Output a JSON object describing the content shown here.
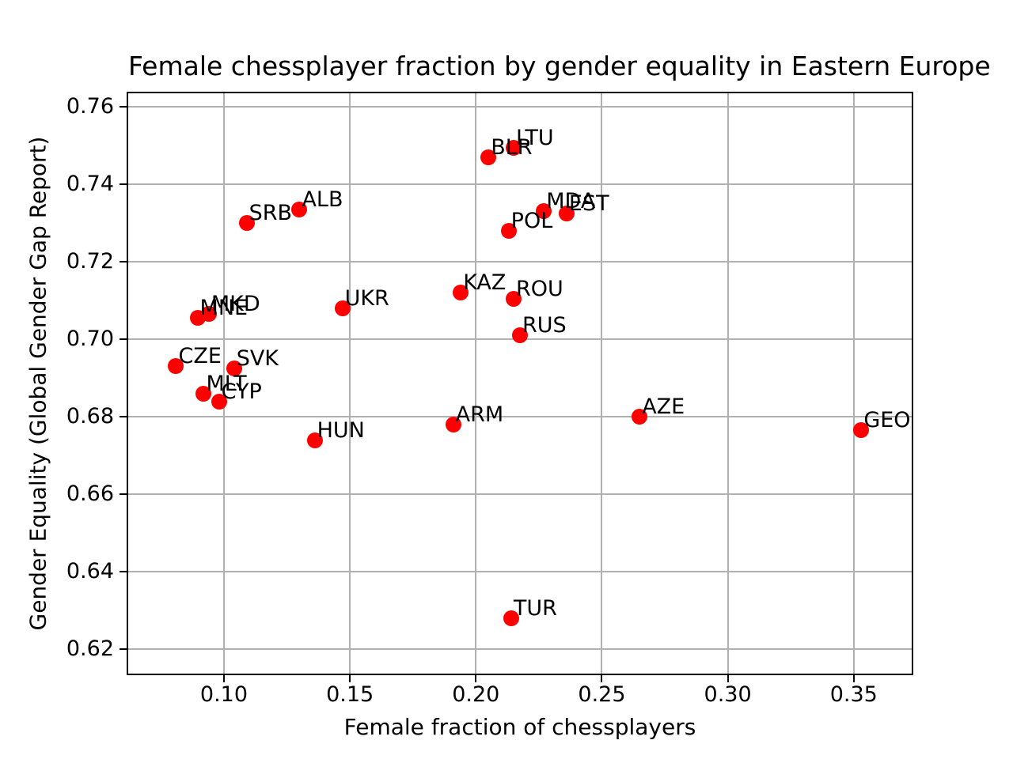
{
  "chart_data": {
    "type": "scatter",
    "title": "Female chessplayer fraction by gender equality in Eastern Europe",
    "xlabel": "Female fraction of chessplayers",
    "ylabel": "Gender Equality (Global Gender Gap Report)",
    "xlim": [
      0.062,
      0.373
    ],
    "ylim": [
      0.6137,
      0.7635
    ],
    "xticks": [
      0.1,
      0.15,
      0.2,
      0.25,
      0.3,
      0.35
    ],
    "xtick_labels": [
      "0.10",
      "0.15",
      "0.20",
      "0.25",
      "0.30",
      "0.35"
    ],
    "yticks": [
      0.62,
      0.64,
      0.66,
      0.68,
      0.7,
      0.72,
      0.74,
      0.76
    ],
    "ytick_labels": [
      "0.62",
      "0.64",
      "0.66",
      "0.68",
      "0.70",
      "0.72",
      "0.74",
      "0.76"
    ],
    "grid": true,
    "legend": false,
    "marker_color": "#ff0000",
    "grid_color": "#b0b0b0",
    "text_color": "#000000",
    "points": [
      {
        "label": "LTU",
        "x": 0.215,
        "y": 0.7495
      },
      {
        "label": "BLR",
        "x": 0.205,
        "y": 0.747
      },
      {
        "label": "EST",
        "x": 0.236,
        "y": 0.7325
      },
      {
        "label": "MDA",
        "x": 0.227,
        "y": 0.733
      },
      {
        "label": "ALB",
        "x": 0.13,
        "y": 0.7335
      },
      {
        "label": "SRB",
        "x": 0.109,
        "y": 0.73
      },
      {
        "label": "POL",
        "x": 0.213,
        "y": 0.728
      },
      {
        "label": "KAZ",
        "x": 0.194,
        "y": 0.712
      },
      {
        "label": "ROU",
        "x": 0.215,
        "y": 0.7105
      },
      {
        "label": "UKR",
        "x": 0.147,
        "y": 0.708
      },
      {
        "label": "MKD",
        "x": 0.094,
        "y": 0.7065
      },
      {
        "label": "MNE",
        "x": 0.0895,
        "y": 0.7055
      },
      {
        "label": "RUS",
        "x": 0.2175,
        "y": 0.701
      },
      {
        "label": "CZE",
        "x": 0.081,
        "y": 0.693
      },
      {
        "label": "SVK",
        "x": 0.104,
        "y": 0.6925
      },
      {
        "label": "MLT",
        "x": 0.092,
        "y": 0.686
      },
      {
        "label": "CYP",
        "x": 0.098,
        "y": 0.684
      },
      {
        "label": "AZE",
        "x": 0.265,
        "y": 0.68
      },
      {
        "label": "ARM",
        "x": 0.191,
        "y": 0.678
      },
      {
        "label": "GEO",
        "x": 0.353,
        "y": 0.6765
      },
      {
        "label": "HUN",
        "x": 0.136,
        "y": 0.674
      },
      {
        "label": "TUR",
        "x": 0.214,
        "y": 0.628
      }
    ]
  }
}
